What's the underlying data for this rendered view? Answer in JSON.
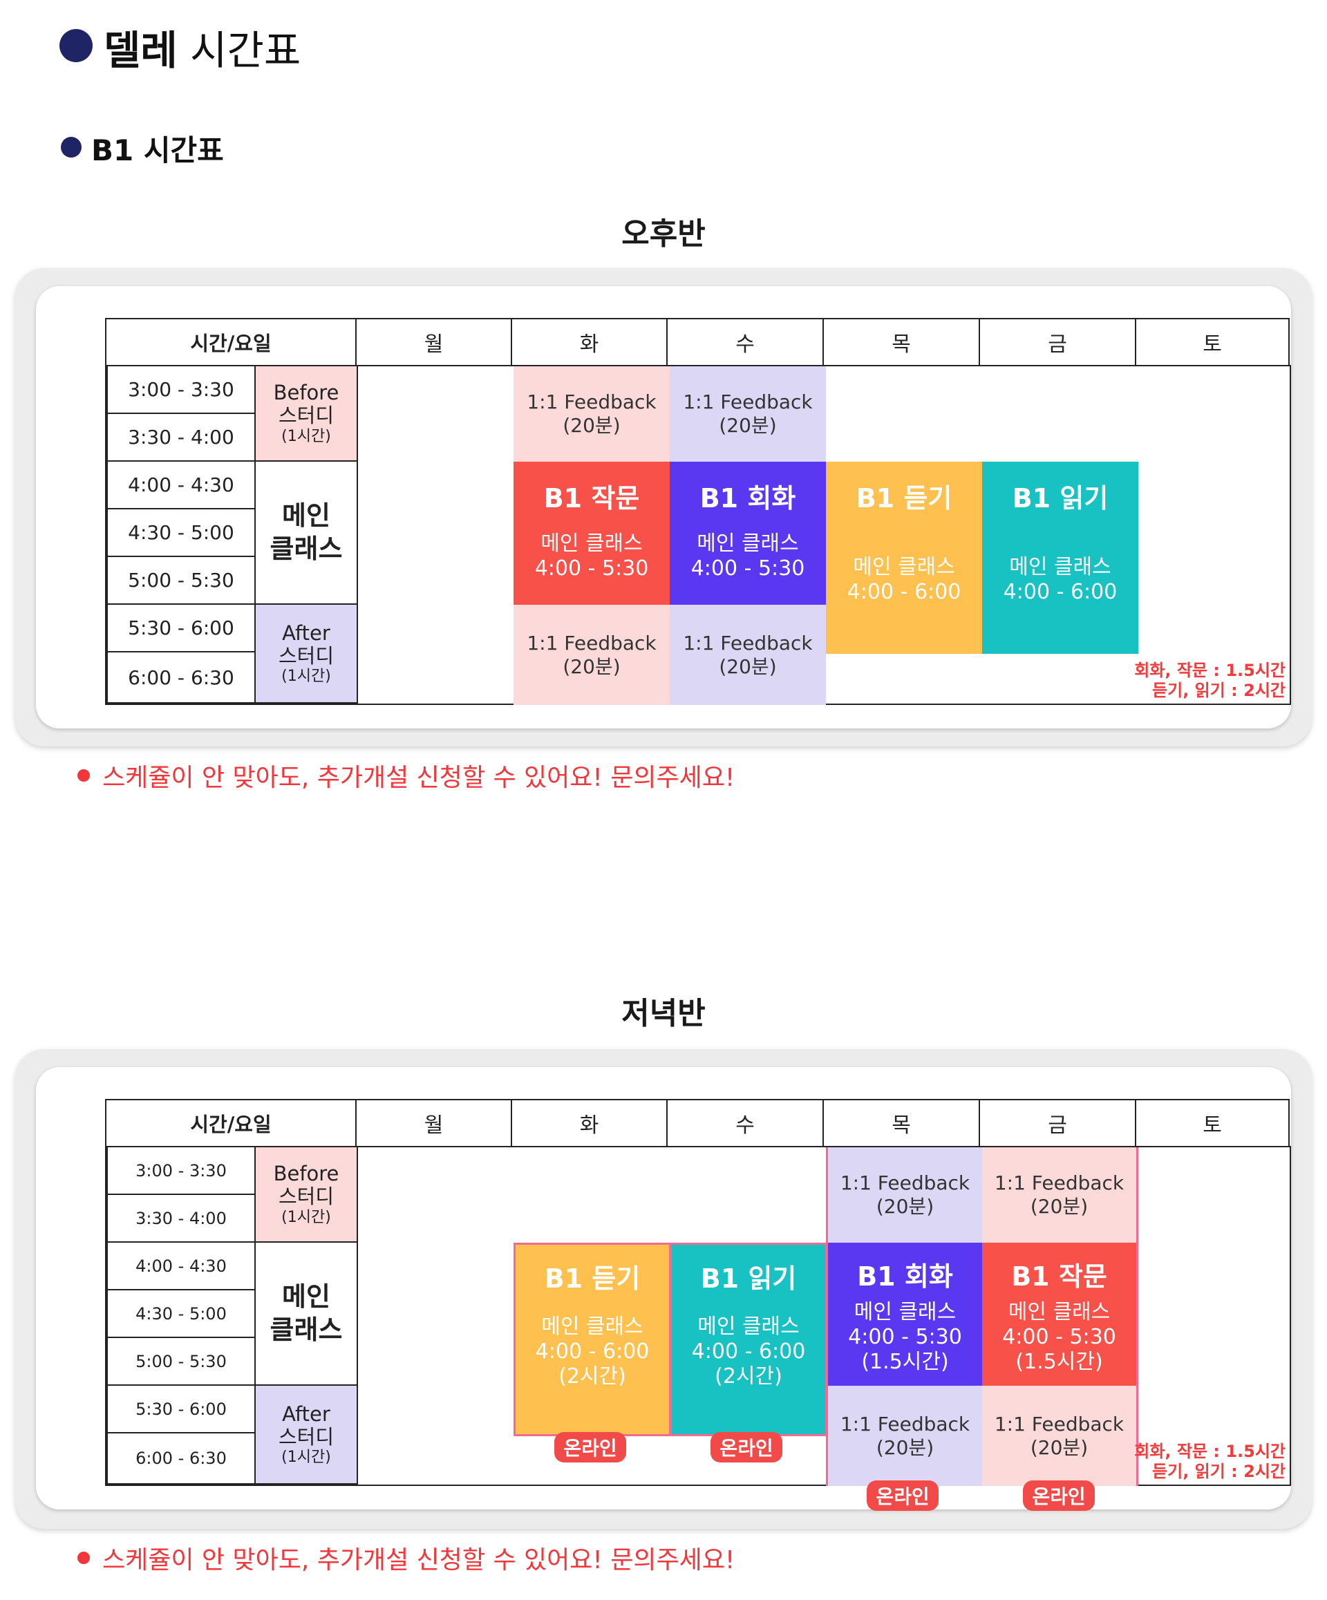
{
  "heading": {
    "bold": "델레",
    "rest": " 시간표"
  },
  "subheading": "B1 시간표",
  "day_header": [
    "시간/요일",
    "월",
    "화",
    "수",
    "목",
    "금",
    "토"
  ],
  "before_study": {
    "line1": "Before",
    "line2": "스터디",
    "line3": "(1시간)"
  },
  "main_class": {
    "line1": "메인",
    "line2": "클래스"
  },
  "after_study": {
    "line1": "After",
    "line2": "스터디",
    "line3": "(1시간)"
  },
  "feedback": {
    "line1": "1:1 Feedback",
    "line2": "(20분)"
  },
  "online_badge": "온라인",
  "notes": {
    "line1": "회화, 작문 : 1.5시간",
    "line2": "듣기, 읽기 : 2시간"
  },
  "footer": "스케쥴이 안 맞아도, 추가개설 신청할 수 있어요! 문의주세요!",
  "afternoon": {
    "title": "오후반",
    "times": [
      "3:00 - 3:30",
      "3:30 - 4:00",
      "4:00 - 4:30",
      "4:30 - 5:00",
      "5:00 - 5:30",
      "5:30 - 6:00",
      "6:00 - 6:30"
    ],
    "courses": {
      "tue": {
        "title": "B1 작문",
        "sub1": "메인 클래스",
        "sub2": "4:00 - 5:30"
      },
      "wed": {
        "title": "B1 회화",
        "sub1": "메인 클래스",
        "sub2": "4:00 - 5:30"
      },
      "thu": {
        "title": "B1 듣기",
        "sub1": "메인 클래스",
        "sub2": "4:00 - 6:00"
      },
      "fri": {
        "title": "B1 읽기",
        "sub1": "메인 클래스",
        "sub2": "4:00 - 6:00"
      }
    }
  },
  "evening": {
    "title": "저녁반",
    "times": [
      "3:00 - 3:30",
      "3:30 - 4:00",
      "4:00 - 4:30",
      "4:30 - 5:00",
      "5:00 - 5:30",
      "5:30 - 6:00",
      "6:00 - 6:30"
    ],
    "courses": {
      "tue": {
        "title": "B1 듣기",
        "sub1": "메인 클래스",
        "sub2": "4:00 - 6:00",
        "sub3": "(2시간)"
      },
      "wed": {
        "title": "B1 읽기",
        "sub1": "메인 클래스",
        "sub2": "4:00 - 6:00",
        "sub3": "(2시간)"
      },
      "thu": {
        "title": "B1 회화",
        "sub1": "메인 클래스",
        "sub2": "4:00 - 5:30",
        "sub3": "(1.5시간)"
      },
      "fri": {
        "title": "B1 작문",
        "sub1": "메인 클래스",
        "sub2": "4:00 - 5:30",
        "sub3": "(1.5시간)"
      }
    }
  },
  "colors": {
    "navy": "#1e2466",
    "red": "#f85149",
    "purple": "#5a37f1",
    "yellow": "#fec04e",
    "teal": "#18c1c2",
    "pink": "#fcdad9",
    "lavender": "#ddd7f6",
    "accent_red": "#f2363a"
  }
}
